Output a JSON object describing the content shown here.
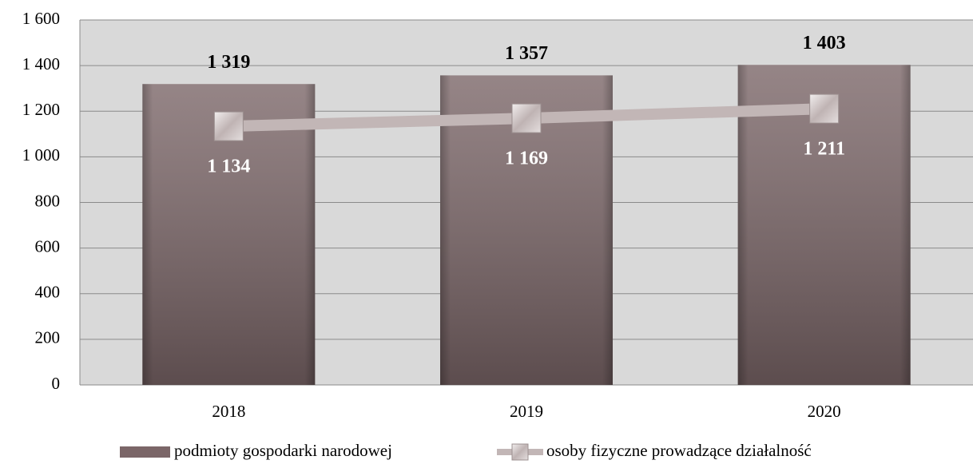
{
  "chart_data": {
    "type": "bar",
    "categories": [
      "2018",
      "2019",
      "2020"
    ],
    "series": [
      {
        "name": "podmioty gospodarki narodowej",
        "color": "#7b6668",
        "values": [
          1319,
          1357,
          1403
        ],
        "value_labels": [
          "1 319",
          "1 357",
          "1 403"
        ]
      },
      {
        "name": "osoby fizyczne prowadzące działalność",
        "type": "line",
        "color": "#c2b6b6",
        "values": [
          1134,
          1169,
          1211
        ],
        "value_labels": [
          "1 134",
          "1 169",
          "1 211"
        ]
      }
    ],
    "ylim": [
      0,
      1600
    ],
    "yticks": [
      0,
      200,
      400,
      600,
      800,
      {
        "value": 1000,
        "label": "1 000"
      },
      {
        "value": 1200,
        "label": "1 200"
      },
      {
        "value": 1400,
        "label": "1 400"
      },
      {
        "value": 1600,
        "label": "1 600"
      }
    ],
    "grid": true,
    "legend": "bottom"
  }
}
